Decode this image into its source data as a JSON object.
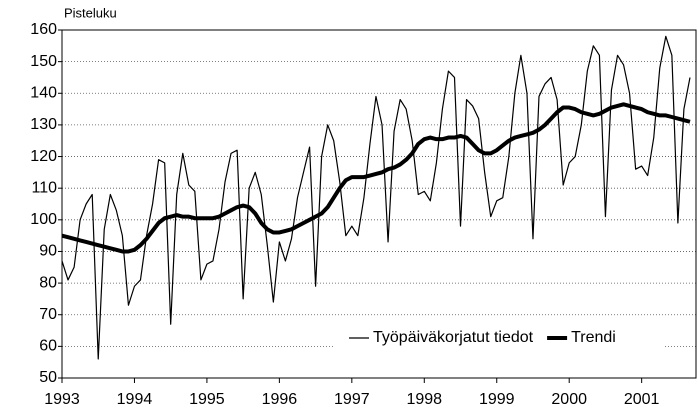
{
  "chart_data": {
    "type": "line",
    "y_axis_label": "Pisteluku",
    "x": [
      1993,
      1993.083,
      1993.167,
      1993.25,
      1993.333,
      1993.417,
      1993.5,
      1993.583,
      1993.667,
      1993.75,
      1993.833,
      1993.917,
      1994,
      1994.083,
      1994.167,
      1994.25,
      1994.333,
      1994.417,
      1994.5,
      1994.583,
      1994.667,
      1994.75,
      1994.833,
      1994.917,
      1995,
      1995.083,
      1995.167,
      1995.25,
      1995.333,
      1995.417,
      1995.5,
      1995.583,
      1995.667,
      1995.75,
      1995.833,
      1995.917,
      1996,
      1996.083,
      1996.167,
      1996.25,
      1996.333,
      1996.417,
      1996.5,
      1996.583,
      1996.667,
      1996.75,
      1996.833,
      1996.917,
      1997,
      1997.083,
      1997.167,
      1997.25,
      1997.333,
      1997.417,
      1997.5,
      1997.583,
      1997.667,
      1997.75,
      1997.833,
      1997.917,
      1998,
      1998.083,
      1998.167,
      1998.25,
      1998.333,
      1998.417,
      1998.5,
      1998.583,
      1998.667,
      1998.75,
      1998.833,
      1998.917,
      1999,
      1999.083,
      1999.167,
      1999.25,
      1999.333,
      1999.417,
      1999.5,
      1999.583,
      1999.667,
      1999.75,
      1999.833,
      1999.917,
      2000,
      2000.083,
      2000.167,
      2000.25,
      2000.333,
      2000.417,
      2000.5,
      2000.583,
      2000.667,
      2000.75,
      2000.833,
      2000.917,
      2001,
      2001.083,
      2001.167,
      2001.25,
      2001.333,
      2001.417,
      2001.5,
      2001.583,
      2001.667
    ],
    "series": [
      {
        "name": "Työpäiväkorjatut tiedot",
        "color": "#000000",
        "width": 1.2,
        "values": [
          87,
          81,
          85,
          100,
          105,
          108,
          56,
          97,
          108,
          103,
          95,
          73,
          79,
          81,
          95,
          105,
          119,
          118,
          67,
          108,
          121,
          111,
          109,
          81,
          86,
          87,
          97,
          112,
          121,
          122,
          75,
          110,
          115,
          108,
          92,
          74,
          93,
          87,
          94,
          107,
          115,
          123,
          79,
          120,
          130,
          125,
          112,
          95,
          98,
          95,
          107,
          124,
          139,
          130,
          93,
          128,
          138,
          135,
          125,
          108,
          109,
          106,
          118,
          135,
          147,
          145,
          98,
          138,
          136,
          132,
          115,
          101,
          106,
          107,
          120,
          140,
          152,
          140,
          94,
          139,
          143,
          145,
          138,
          111,
          118,
          120,
          130,
          147,
          155,
          152,
          101,
          141,
          152,
          149,
          140,
          116,
          117,
          114,
          126,
          148,
          158,
          152,
          99,
          135,
          145
        ]
      },
      {
        "name": "Trendi",
        "color": "#000000",
        "width": 4,
        "values": [
          95,
          94.5,
          94,
          93.5,
          93,
          92.5,
          92,
          91.5,
          91,
          90.5,
          90,
          90,
          90.5,
          92,
          94,
          96.5,
          99,
          100.5,
          101,
          101.5,
          101,
          101,
          100.5,
          100.5,
          100.5,
          100.5,
          101,
          102,
          103,
          104,
          104.5,
          104,
          102,
          99,
          97,
          96,
          96,
          96.5,
          97,
          98,
          99,
          100,
          101,
          102,
          104,
          107,
          110,
          112.5,
          113.5,
          113.5,
          113.5,
          114,
          114.5,
          115,
          116,
          116.5,
          117.5,
          119,
          121,
          124,
          125.5,
          126,
          125.5,
          125.5,
          126,
          126,
          126.5,
          126,
          124,
          122,
          121,
          121,
          122,
          123.5,
          125,
          126,
          126.5,
          127,
          127.5,
          128.5,
          130,
          132,
          134,
          135.5,
          135.5,
          135,
          134,
          133.5,
          133,
          133.5,
          134.5,
          135.5,
          136,
          136.5,
          136,
          135.5,
          135,
          134,
          133.5,
          133,
          133,
          132.5,
          132,
          131.5,
          131
        ]
      }
    ],
    "xlim": [
      1993,
      2001.75
    ],
    "xticks": [
      1993,
      1994,
      1995,
      1996,
      1997,
      1998,
      1999,
      2000,
      2001
    ],
    "ylim": [
      50,
      160
    ],
    "yticks": [
      50,
      60,
      70,
      80,
      90,
      100,
      110,
      120,
      130,
      140,
      150,
      160
    ],
    "grid": true,
    "legend": "lower right"
  }
}
